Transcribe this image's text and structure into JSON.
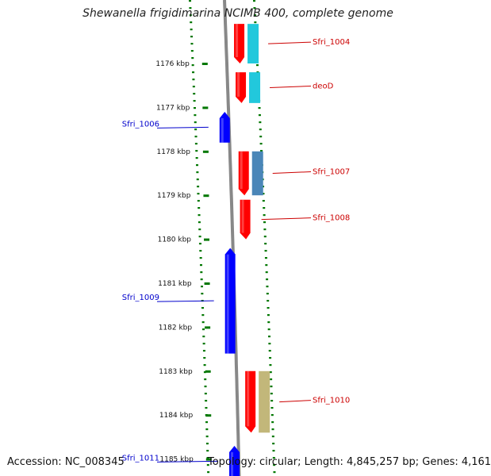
{
  "title": "Shewanella frigidimarina NCIMB 400, complete genome",
  "footer": {
    "accession": "Accession: NC_008345",
    "summary": "Topology: circular; Length: 4,845,257 bp; Genes: 4,161"
  },
  "colors": {
    "forward_cds": "#ff0000",
    "reverse_cds": "#0000ff",
    "label_forward": "#cc0000",
    "label_reverse": "#0000cc",
    "backbone": "#888888",
    "ruler_ticks": "#007700",
    "cog_cyan": "#22c8dc",
    "cog_steelblue": "#4a86b8",
    "cog_khaki": "#c2b77a"
  },
  "scale": {
    "unit": "kbp",
    "ticks": [
      {
        "label": "1176 kbp",
        "kbp": 1176
      },
      {
        "label": "1177 kbp",
        "kbp": 1177
      },
      {
        "label": "1178 kbp",
        "kbp": 1178
      },
      {
        "label": "1179 kbp",
        "kbp": 1179
      },
      {
        "label": "1180 kbp",
        "kbp": 1180
      },
      {
        "label": "1181 kbp",
        "kbp": 1181
      },
      {
        "label": "1182 kbp",
        "kbp": 1182
      },
      {
        "label": "1183 kbp",
        "kbp": 1183
      },
      {
        "label": "1184 kbp",
        "kbp": 1184
      },
      {
        "label": "1185 kbp",
        "kbp": 1185
      }
    ]
  },
  "genes": [
    {
      "label": "Sfri_1004",
      "strand": "forward",
      "start_kbp": 1175.1,
      "end_kbp": 1176.0,
      "cog": "cog_cyan"
    },
    {
      "label": "deoD",
      "strand": "forward",
      "start_kbp": 1176.2,
      "end_kbp": 1176.9,
      "cog": "cog_cyan"
    },
    {
      "label": "Sfri_1006",
      "strand": "reverse",
      "start_kbp": 1177.1,
      "end_kbp": 1177.8,
      "cog": null
    },
    {
      "label": "Sfri_1007",
      "strand": "forward",
      "start_kbp": 1178.0,
      "end_kbp": 1179.0,
      "cog": "cog_steelblue"
    },
    {
      "label": "Sfri_1008",
      "strand": "forward",
      "start_kbp": 1179.1,
      "end_kbp": 1180.0,
      "cog": null
    },
    {
      "label": "Sfri_1009",
      "strand": "reverse",
      "start_kbp": 1180.2,
      "end_kbp": 1182.6,
      "cog": null
    },
    {
      "label": "Sfri_1010",
      "strand": "forward",
      "start_kbp": 1183.0,
      "end_kbp": 1184.4,
      "cog": "cog_khaki"
    },
    {
      "label": "Sfri_1011",
      "strand": "reverse",
      "start_kbp": 1184.7,
      "end_kbp": 1185.4,
      "cog": null
    }
  ]
}
